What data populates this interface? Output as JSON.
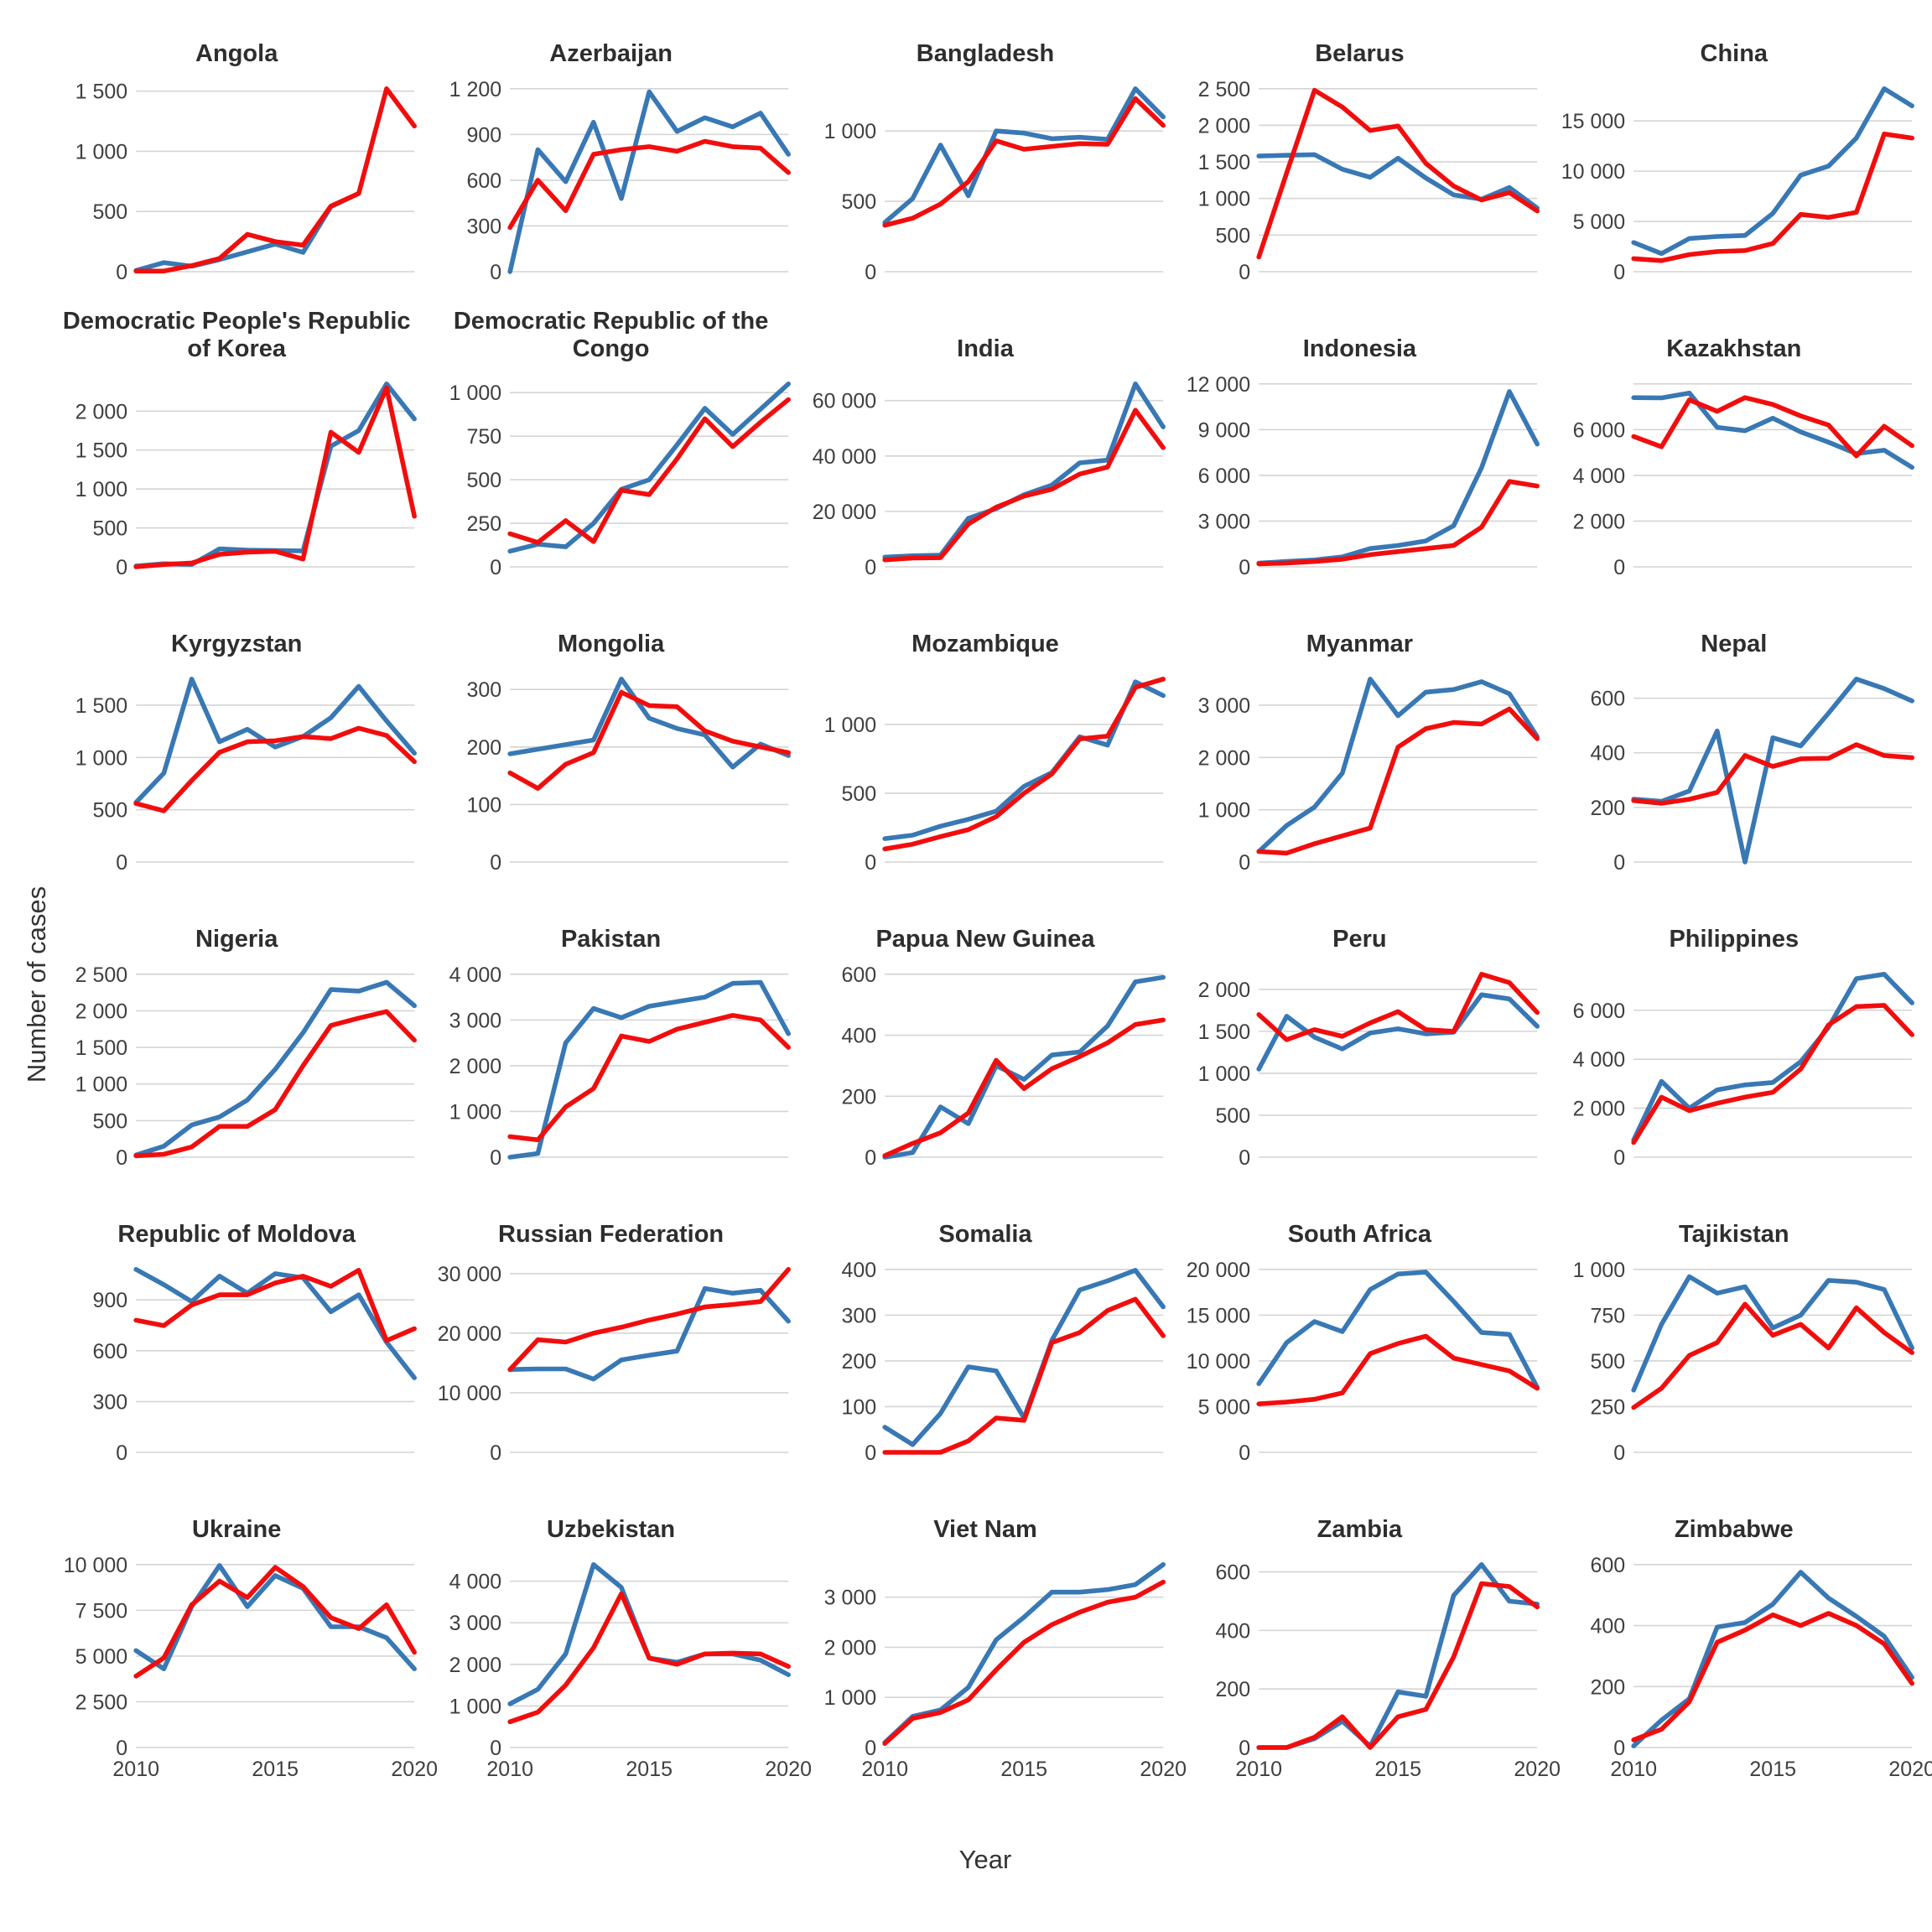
{
  "axes": {
    "y_label": "Number of cases",
    "x_label": "Year"
  },
  "colors": {
    "blue_series": "#3878B4",
    "red_series": "#F20D0D",
    "gridline": "#D4D4D4",
    "tick_text": "#3F3F3F",
    "title_text": "#2E2E2E"
  },
  "chart_data": {
    "type": "line",
    "x": [
      2010,
      2011,
      2012,
      2013,
      2014,
      2015,
      2016,
      2017,
      2018,
      2019,
      2020
    ],
    "x_ticks": [
      "2010",
      "2015",
      "2020"
    ],
    "series_names": [
      "blue",
      "red"
    ],
    "legend": "none",
    "grid": "horizontal-only",
    "facets": [
      {
        "title": "Angola",
        "ticks": [
          0,
          500,
          1000,
          1500
        ],
        "blue": [
          10,
          75,
          45,
          100,
          165,
          230,
          160,
          540,
          650,
          null,
          null
        ],
        "red": [
          5,
          5,
          50,
          110,
          310,
          250,
          220,
          545,
          650,
          1520,
          1210
        ]
      },
      {
        "title": "Azerbaijan",
        "ticks": [
          0,
          300,
          600,
          900,
          1200
        ],
        "blue": [
          0,
          800,
          590,
          980,
          480,
          1180,
          920,
          1010,
          950,
          1040,
          770
        ],
        "red": [
          290,
          600,
          400,
          770,
          800,
          820,
          790,
          855,
          820,
          810,
          650
        ]
      },
      {
        "title": "Bangladesh",
        "ticks": [
          0,
          500,
          1000
        ],
        "blue": [
          350,
          520,
          900,
          540,
          1000,
          985,
          945,
          955,
          940,
          1300,
          1100
        ],
        "red": [
          330,
          380,
          480,
          640,
          930,
          870,
          890,
          910,
          905,
          1230,
          1040
        ]
      },
      {
        "title": "Belarus",
        "ticks": [
          0,
          500,
          1000,
          1500,
          2000,
          2500
        ],
        "blue": [
          1580,
          1590,
          1600,
          1400,
          1290,
          1550,
          1280,
          1050,
          990,
          1150,
          870
        ],
        "red": [
          200,
          1350,
          2480,
          2250,
          1930,
          1990,
          1480,
          1170,
          980,
          1080,
          830
        ]
      },
      {
        "title": "China",
        "ticks": [
          0,
          5000,
          10000,
          15000
        ],
        "blue": [
          2900,
          1800,
          3300,
          3500,
          3600,
          5800,
          9600,
          10500,
          13300,
          18200,
          16500
        ],
        "red": [
          1300,
          1100,
          1700,
          2000,
          2100,
          2800,
          5700,
          5400,
          5900,
          13700,
          13300
        ]
      },
      {
        "title": "Democratic People's Republic of Korea",
        "ticks": [
          0,
          500,
          1000,
          1500,
          2000
        ],
        "blue": [
          10,
          40,
          30,
          230,
          215,
          210,
          205,
          1550,
          1750,
          2350,
          1900
        ],
        "red": [
          0,
          30,
          50,
          160,
          190,
          200,
          100,
          1730,
          1470,
          2300,
          650
        ]
      },
      {
        "title": "Democratic Republic of the Congo",
        "ticks": [
          0,
          250,
          500,
          750,
          1000
        ],
        "blue": [
          90,
          130,
          115,
          250,
          445,
          500,
          700,
          910,
          760,
          905,
          1050
        ],
        "red": [
          190,
          140,
          265,
          145,
          440,
          415,
          620,
          850,
          690,
          830,
          960
        ]
      },
      {
        "title": "India",
        "ticks": [
          0,
          20000,
          40000,
          60000
        ],
        "blue": [
          3500,
          4000,
          4200,
          17500,
          21000,
          26000,
          29500,
          37500,
          38500,
          66000,
          50500
        ],
        "red": [
          2500,
          3200,
          3300,
          15500,
          21500,
          25500,
          28000,
          33500,
          36000,
          56500,
          43000
        ]
      },
      {
        "title": "Indonesia",
        "ticks": [
          0,
          3000,
          6000,
          9000,
          12000
        ],
        "blue": [
          250,
          350,
          450,
          650,
          1200,
          1400,
          1700,
          2700,
          6500,
          11500,
          8050
        ],
        "red": [
          200,
          250,
          350,
          500,
          800,
          1000,
          1200,
          1400,
          2600,
          5600,
          5300
        ]
      },
      {
        "title": "Kazakhstan",
        "ticks": [
          0,
          2000,
          4000,
          6000
        ],
        "extra_grid": [
          8000
        ],
        "blue": [
          7400,
          7390,
          7600,
          6100,
          5950,
          6500,
          5900,
          5450,
          4950,
          5100,
          4350
        ],
        "red": [
          5700,
          5250,
          7300,
          6800,
          7400,
          7100,
          6600,
          6200,
          4850,
          6150,
          5300
        ]
      },
      {
        "title": "Kyrgyzstan",
        "ticks": [
          0,
          500,
          1000,
          1500
        ],
        "blue": [
          570,
          850,
          1750,
          1150,
          1270,
          1100,
          1200,
          1380,
          1680,
          1350,
          1040
        ],
        "red": [
          560,
          490,
          780,
          1050,
          1150,
          1160,
          1200,
          1180,
          1280,
          1210,
          960
        ]
      },
      {
        "title": "Mongolia",
        "ticks": [
          0,
          100,
          200,
          300
        ],
        "blue": [
          188,
          196,
          204,
          212,
          318,
          250,
          232,
          221,
          165,
          205,
          185
        ],
        "red": [
          155,
          128,
          170,
          190,
          295,
          272,
          270,
          228,
          210,
          200,
          190
        ]
      },
      {
        "title": "Mozambique",
        "ticks": [
          0,
          500,
          1000
        ],
        "blue": [
          170,
          195,
          260,
          310,
          370,
          550,
          650,
          910,
          850,
          1310,
          1210
        ],
        "red": [
          95,
          130,
          185,
          235,
          330,
          500,
          640,
          895,
          915,
          1270,
          1330
        ]
      },
      {
        "title": "Myanmar",
        "ticks": [
          0,
          1000,
          2000,
          3000
        ],
        "blue": [
          200,
          700,
          1050,
          1700,
          3500,
          2800,
          3250,
          3300,
          3450,
          3220,
          2400
        ],
        "red": [
          200,
          170,
          350,
          500,
          650,
          2200,
          2550,
          2670,
          2640,
          2930,
          2360
        ]
      },
      {
        "title": "Nepal",
        "ticks": [
          0,
          200,
          400,
          600
        ],
        "blue": [
          230,
          222,
          260,
          480,
          0,
          455,
          425,
          545,
          670,
          635,
          590
        ],
        "red": [
          225,
          215,
          230,
          255,
          390,
          350,
          378,
          380,
          430,
          390,
          382
        ]
      },
      {
        "title": "Nigeria",
        "ticks": [
          0,
          500,
          1000,
          1500,
          2000,
          2500
        ],
        "blue": [
          30,
          150,
          440,
          550,
          780,
          1200,
          1700,
          2290,
          2270,
          2390,
          2070
        ],
        "red": [
          20,
          40,
          140,
          420,
          420,
          650,
          1250,
          1800,
          1900,
          1990,
          1600
        ]
      },
      {
        "title": "Pakistan",
        "ticks": [
          0,
          1000,
          2000,
          3000,
          4000
        ],
        "blue": [
          0,
          80,
          2500,
          3250,
          3050,
          3300,
          3400,
          3500,
          3800,
          3820,
          2700
        ],
        "red": [
          450,
          380,
          1100,
          1500,
          2650,
          2530,
          2800,
          2950,
          3100,
          3000,
          2400
        ]
      },
      {
        "title": "Papua New Guinea",
        "ticks": [
          0,
          200,
          400,
          600
        ],
        "blue": [
          0,
          15,
          165,
          110,
          300,
          255,
          335,
          345,
          430,
          575,
          590
        ],
        "red": [
          5,
          45,
          80,
          145,
          318,
          225,
          290,
          330,
          375,
          435,
          450
        ]
      },
      {
        "title": "Peru",
        "ticks": [
          0,
          500,
          1000,
          1500,
          2000
        ],
        "blue": [
          1050,
          1680,
          1430,
          1290,
          1480,
          1530,
          1470,
          1490,
          1935,
          1885,
          1560
        ],
        "red": [
          1700,
          1400,
          1520,
          1440,
          1600,
          1735,
          1520,
          1500,
          2180,
          2080,
          1725
        ]
      },
      {
        "title": "Philippines",
        "ticks": [
          0,
          2000,
          4000,
          6000
        ],
        "blue": [
          700,
          3100,
          2000,
          2750,
          2950,
          3050,
          3900,
          5300,
          7290,
          7470,
          6300
        ],
        "red": [
          600,
          2450,
          1900,
          2200,
          2450,
          2650,
          3600,
          5400,
          6150,
          6200,
          5000
        ]
      },
      {
        "title": "Republic of Moldova",
        "ticks": [
          0,
          300,
          600,
          900
        ],
        "blue": [
          1080,
          990,
          890,
          1040,
          940,
          1055,
          1030,
          830,
          930,
          650,
          440
        ],
        "red": [
          780,
          748,
          870,
          930,
          930,
          1000,
          1040,
          980,
          1075,
          660,
          730
        ]
      },
      {
        "title": "Russian Federation",
        "ticks": [
          0,
          10000,
          20000,
          30000
        ],
        "blue": [
          13900,
          14000,
          14000,
          12300,
          15500,
          16300,
          17000,
          27500,
          26700,
          27200,
          22000
        ],
        "red": [
          13900,
          18900,
          18500,
          20000,
          21000,
          22200,
          23200,
          24400,
          24800,
          25300,
          30700
        ]
      },
      {
        "title": "Somalia",
        "ticks": [
          0,
          100,
          200,
          300,
          400
        ],
        "blue": [
          55,
          17,
          85,
          187,
          178,
          75,
          245,
          355,
          375,
          398,
          318
        ],
        "red": [
          0,
          0,
          0,
          25,
          75,
          70,
          240,
          262,
          310,
          335,
          255
        ]
      },
      {
        "title": "South Africa",
        "ticks": [
          0,
          5000,
          10000,
          15000,
          20000
        ],
        "blue": [
          7500,
          12000,
          14300,
          13200,
          17800,
          19500,
          19700,
          16500,
          13100,
          12900,
          7100
        ],
        "red": [
          5300,
          5500,
          5800,
          6500,
          10800,
          11900,
          12700,
          10300,
          9600,
          8900,
          7000
        ]
      },
      {
        "title": "Tajikistan",
        "ticks": [
          0,
          250,
          500,
          750,
          1000
        ],
        "blue": [
          340,
          700,
          960,
          870,
          905,
          680,
          750,
          940,
          930,
          890,
          570
        ],
        "red": [
          245,
          350,
          530,
          600,
          810,
          640,
          700,
          570,
          790,
          655,
          545
        ]
      },
      {
        "title": "Ukraine",
        "ticks": [
          0,
          2500,
          5000,
          7500,
          10000
        ],
        "blue": [
          5300,
          4300,
          7700,
          9950,
          7700,
          9400,
          8700,
          6600,
          6600,
          6000,
          4300
        ],
        "red": [
          3900,
          4900,
          7800,
          9100,
          8200,
          9850,
          8800,
          7100,
          6500,
          7800,
          5200
        ]
      },
      {
        "title": "Uzbekistan",
        "ticks": [
          0,
          1000,
          2000,
          3000,
          4000
        ],
        "blue": [
          1050,
          1400,
          2250,
          4400,
          3850,
          2150,
          2050,
          2250,
          2250,
          2100,
          1750
        ],
        "red": [
          620,
          850,
          1500,
          2400,
          3700,
          2150,
          2000,
          2250,
          2270,
          2250,
          1950
        ]
      },
      {
        "title": "Viet Nam",
        "ticks": [
          0,
          1000,
          2000,
          3000
        ],
        "blue": [
          100,
          620,
          750,
          1200,
          2150,
          2600,
          3100,
          3100,
          3150,
          3250,
          3650
        ],
        "red": [
          80,
          580,
          700,
          950,
          1550,
          2100,
          2450,
          2700,
          2900,
          3000,
          3300
        ]
      },
      {
        "title": "Zambia",
        "ticks": [
          0,
          200,
          400,
          600
        ],
        "blue": [
          0,
          0,
          30,
          90,
          5,
          190,
          175,
          520,
          625,
          500,
          490
        ],
        "red": [
          0,
          0,
          35,
          105,
          0,
          105,
          130,
          310,
          560,
          550,
          480
        ]
      },
      {
        "title": "Zimbabwe",
        "ticks": [
          0,
          200,
          400,
          600
        ],
        "blue": [
          5,
          90,
          160,
          395,
          410,
          470,
          575,
          490,
          430,
          365,
          230
        ],
        "red": [
          25,
          60,
          150,
          345,
          385,
          435,
          400,
          440,
          400,
          340,
          210
        ]
      }
    ]
  }
}
